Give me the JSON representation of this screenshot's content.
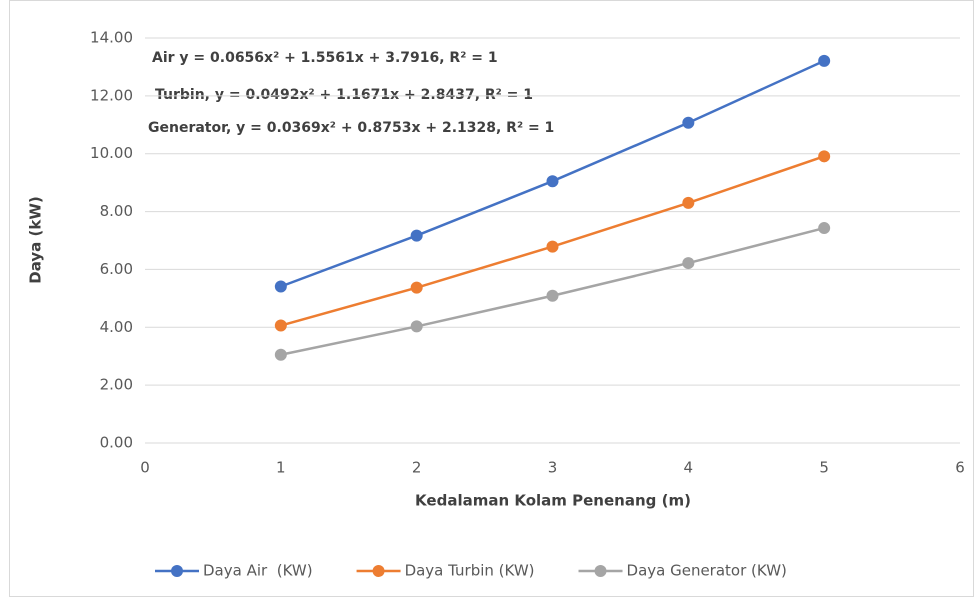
{
  "chart_data": {
    "type": "line",
    "x": [
      1,
      2,
      3,
      4,
      5
    ],
    "series": [
      {
        "name": "Daya Air  (KW)",
        "color": "#4472c4",
        "values": [
          5.41,
          7.17,
          9.05,
          11.07,
          13.21
        ]
      },
      {
        "name": "Daya Turbin (KW)",
        "color": "#ed7d31",
        "values": [
          4.06,
          5.37,
          6.79,
          8.3,
          9.91
        ]
      },
      {
        "name": "Daya Generator (KW)",
        "color": "#a5a5a5",
        "values": [
          3.05,
          4.03,
          5.09,
          6.22,
          7.43
        ]
      }
    ],
    "xlabel": "Kedalaman Kolam Penenang (m)",
    "ylabel": "Daya (kW)",
    "annotations": [
      "Air y = 0.0656x² + 1.5561x + 3.7916,  R² = 1",
      "Turbin, y = 0.0492x² + 1.1671x + 2.8437,  R² = 1",
      "Generator, y = 0.0369x² + 0.8753x + 2.1328, R² = 1"
    ],
    "xlim": [
      0,
      6
    ],
    "xticks": [
      0,
      1,
      2,
      3,
      4,
      5,
      6
    ],
    "ylim": [
      0,
      14
    ],
    "yticks": [
      {
        "value": 0,
        "label": "0.00"
      },
      {
        "value": 2,
        "label": "2.00"
      },
      {
        "value": 4,
        "label": "4.00"
      },
      {
        "value": 6,
        "label": "6.00"
      },
      {
        "value": 8,
        "label": "8.00"
      },
      {
        "value": 10,
        "label": "10.00"
      },
      {
        "value": 12,
        "label": "12.00"
      },
      {
        "value": 14,
        "label": "14.00"
      }
    ],
    "grid": true,
    "legend": "bottom"
  }
}
